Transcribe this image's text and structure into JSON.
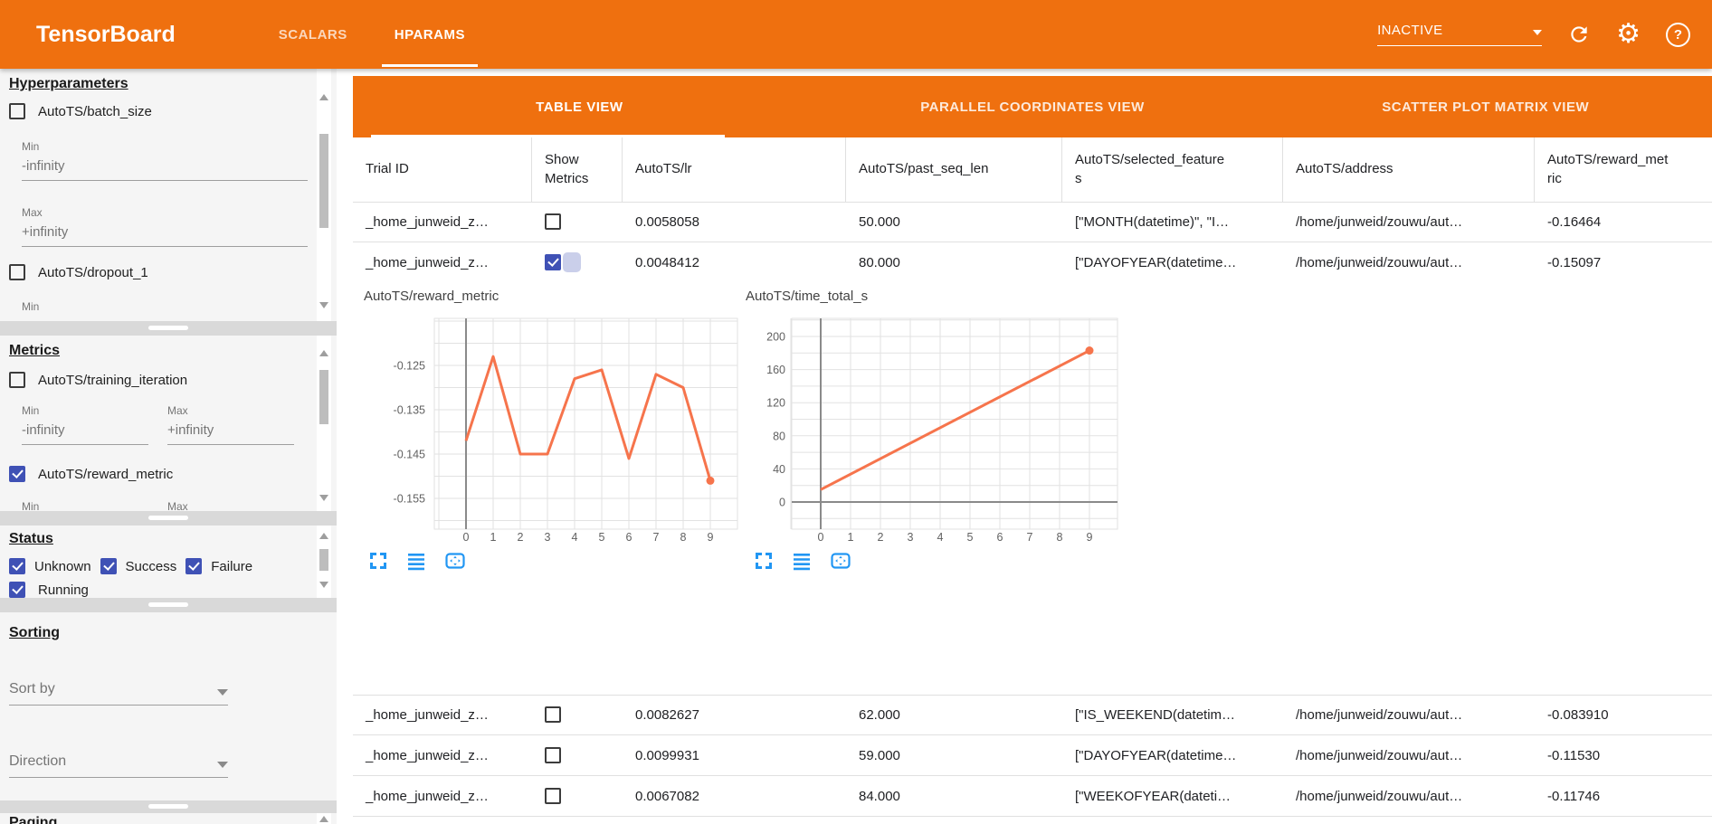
{
  "topbar": {
    "brand": "TensorBoard",
    "nav_tabs": [
      {
        "label": "SCALARS",
        "active": false
      },
      {
        "label": "HPARAMS",
        "active": true
      }
    ],
    "status_select": {
      "value": "INACTIVE"
    },
    "icons": [
      {
        "name": "reload-icon"
      },
      {
        "name": "settings-gear-icon",
        "glyph": "⚙"
      },
      {
        "name": "help-icon",
        "glyph": "?"
      }
    ]
  },
  "sidebar": {
    "hyperparameters": {
      "title": "Hyperparameters",
      "items": [
        {
          "label": "AutoTS/batch_size",
          "checked": false
        },
        {
          "label": "AutoTS/dropout_1",
          "checked": false
        }
      ],
      "min_label": "Min",
      "max_label": "Max",
      "min_value": "-infinity",
      "max_value": "+infinity"
    },
    "metrics": {
      "title": "Metrics",
      "items": [
        {
          "label": "AutoTS/training_iteration",
          "checked": false
        },
        {
          "label": "AutoTS/reward_metric",
          "checked": true
        }
      ],
      "min_label": "Min",
      "max_label": "Max",
      "min_value": "-infinity",
      "max_value": "+infinity"
    },
    "status": {
      "title": "Status",
      "options": [
        {
          "label": "Unknown",
          "checked": true
        },
        {
          "label": "Success",
          "checked": true
        },
        {
          "label": "Failure",
          "checked": true
        },
        {
          "label": "Running",
          "checked": true
        }
      ]
    },
    "sorting": {
      "title": "Sorting",
      "sort_by_placeholder": "Sort by",
      "direction_placeholder": "Direction"
    },
    "paging": {
      "title": "Paging"
    }
  },
  "view_tabs": [
    {
      "label": "TABLE VIEW",
      "active": true
    },
    {
      "label": "PARALLEL COORDINATES VIEW",
      "active": false
    },
    {
      "label": "SCATTER PLOT MATRIX VIEW",
      "active": false
    }
  ],
  "table": {
    "columns": [
      "Trial ID",
      "Show Metrics",
      "AutoTS/lr",
      "AutoTS/past_seq_len",
      "AutoTS/selected_features",
      "AutoTS/address",
      "AutoTS/reward_metric"
    ],
    "rows_top": [
      {
        "trial_id": "_home_junweid_z…",
        "show_metrics": false,
        "ripple": false,
        "lr": "0.0058058",
        "past_seq_len": "50.000",
        "selected_features": "[\"MONTH(datetime)\", \"I…",
        "address": "/home/junweid/zouwu/aut…",
        "reward_metric": "-0.16464"
      },
      {
        "trial_id": "_home_junweid_z…",
        "show_metrics": true,
        "ripple": true,
        "lr": "0.0048412",
        "past_seq_len": "80.000",
        "selected_features": "[\"DAYOFYEAR(datetime…",
        "address": "/home/junweid/zouwu/aut…",
        "reward_metric": "-0.15097"
      }
    ],
    "rows_bottom": [
      {
        "trial_id": "_home_junweid_z…",
        "show_metrics": false,
        "ripple": false,
        "lr": "0.0082627",
        "past_seq_len": "62.000",
        "selected_features": "[\"IS_WEEKEND(datetim…",
        "address": "/home/junweid/zouwu/aut…",
        "reward_metric": "-0.083910"
      },
      {
        "trial_id": "_home_junweid_z…",
        "show_metrics": false,
        "ripple": false,
        "lr": "0.0099931",
        "past_seq_len": "59.000",
        "selected_features": "[\"DAYOFYEAR(datetime…",
        "address": "/home/junweid/zouwu/aut…",
        "reward_metric": "-0.11530"
      },
      {
        "trial_id": "_home_junweid_z…",
        "show_metrics": false,
        "ripple": false,
        "lr": "0.0067082",
        "past_seq_len": "84.000",
        "selected_features": "[\"WEEKOFYEAR(dateti…",
        "address": "/home/junweid/zouwu/aut…",
        "reward_metric": "-0.11746"
      }
    ]
  },
  "chart_data": [
    {
      "type": "line",
      "title": "AutoTS/reward_metric",
      "x": [
        0,
        1,
        2,
        3,
        4,
        5,
        6,
        7,
        8,
        9
      ],
      "values": [
        -0.142,
        -0.123,
        -0.145,
        -0.145,
        -0.128,
        -0.126,
        -0.146,
        -0.127,
        -0.13,
        -0.151
      ],
      "xtick_labels": [
        "0",
        "1",
        "2",
        "3",
        "4",
        "5",
        "6",
        "7",
        "8",
        "9"
      ],
      "ytick_labels": [
        "-0.125",
        "-0.135",
        "-0.145",
        "-0.155"
      ],
      "ytick_values": [
        -0.125,
        -0.135,
        -0.145,
        -0.155
      ],
      "ylim": [
        -0.158,
        -0.117
      ],
      "grid": true,
      "end_dot": true
    },
    {
      "type": "line",
      "title": "AutoTS/time_total_s",
      "points": [
        [
          0,
          15
        ],
        [
          9,
          183
        ]
      ],
      "xtick_labels": [
        "0",
        "1",
        "2",
        "3",
        "4",
        "5",
        "6",
        "7",
        "8",
        "9"
      ],
      "ytick_labels": [
        "200",
        "160",
        "120",
        "80",
        "40",
        "0"
      ],
      "ytick_values": [
        200,
        160,
        120,
        80,
        40,
        0
      ],
      "ylim": [
        -32,
        222
      ],
      "grid": true,
      "end_dot": true
    }
  ],
  "colors": {
    "accent_orange": "#ef700f",
    "chart_line": "#f6744c",
    "checkbox_indigo": "#3f51b5",
    "icon_blue": "#2196f3"
  }
}
